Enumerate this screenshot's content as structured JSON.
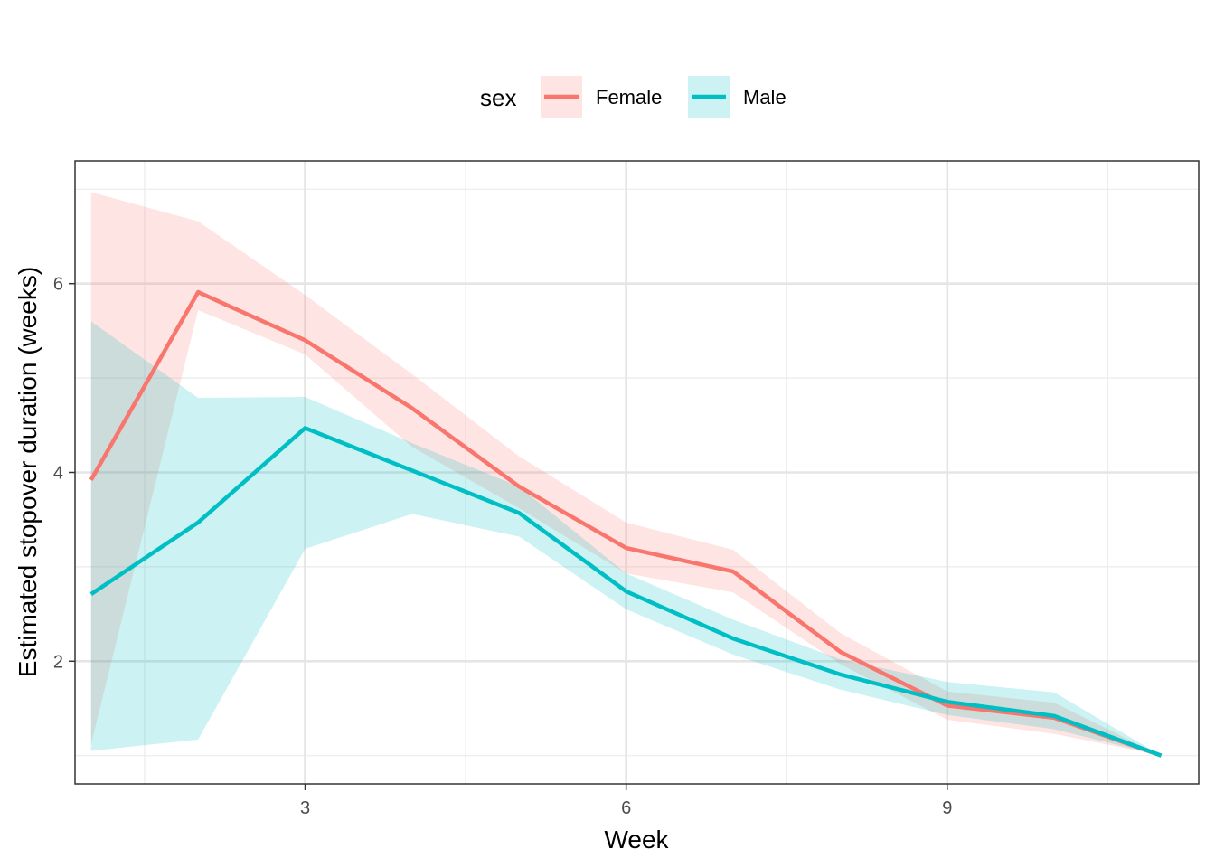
{
  "chart_data": {
    "type": "line",
    "xlabel": "Week",
    "ylabel": "Estimated stopover duration (weeks)",
    "xlim": [
      0.85,
      11.35
    ],
    "ylim": [
      0.7,
      7.3
    ],
    "x_ticks": [
      3,
      6,
      9
    ],
    "y_ticks": [
      2,
      4,
      6
    ],
    "grid": true,
    "legend": {
      "title": "sex",
      "position": "top"
    },
    "x": [
      1,
      2,
      3,
      4,
      5,
      6,
      7,
      8,
      9,
      10,
      11
    ],
    "series": [
      {
        "name": "Female",
        "color": "#F8766D",
        "fill_color": "#F8766D",
        "values": [
          3.92,
          5.91,
          5.4,
          4.68,
          3.85,
          3.2,
          2.95,
          2.1,
          1.53,
          1.4,
          1.0
        ],
        "lower": [
          1.12,
          5.72,
          5.25,
          4.27,
          3.62,
          2.93,
          2.73,
          1.97,
          1.38,
          1.23,
          1.0
        ],
        "upper": [
          6.97,
          6.66,
          5.88,
          5.04,
          4.17,
          3.47,
          3.18,
          2.3,
          1.68,
          1.56,
          1.0
        ]
      },
      {
        "name": "Male",
        "color": "#00BFC4",
        "fill_color": "#00BFC4",
        "values": [
          2.71,
          3.47,
          4.47,
          4.02,
          3.57,
          2.74,
          2.24,
          1.86,
          1.57,
          1.42,
          1.0
        ],
        "lower": [
          1.05,
          1.17,
          3.19,
          3.56,
          3.32,
          2.55,
          2.07,
          1.7,
          1.43,
          1.28,
          1.0
        ],
        "upper": [
          5.6,
          4.79,
          4.8,
          4.31,
          3.85,
          2.93,
          2.44,
          2.02,
          1.78,
          1.67,
          1.0
        ]
      }
    ]
  }
}
